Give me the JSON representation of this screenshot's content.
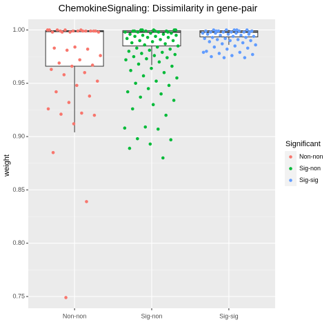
{
  "chart_data": {
    "type": "boxplot",
    "title": "ChemokineSignaling: Dissimilarity in gene-pair",
    "ylabel": "weight",
    "legend_title": "Significant",
    "legend_position": "right",
    "grid": true,
    "categories": [
      "Non-non",
      "Sig-non",
      "Sig-sig"
    ],
    "ylim": [
      0.739,
      1.01
    ],
    "yticks": [
      0.75,
      {
        "value": 0.8,
        "label": "0.80"
      },
      0.85,
      {
        "value": 0.9,
        "label": "0.90"
      },
      0.95,
      {
        "value": 1.0,
        "label": "1.00"
      }
    ],
    "series": [
      {
        "name": "Non-non",
        "color": "#F8766D",
        "box": {
          "min": 0.904,
          "q1": 0.966,
          "median": 0.9987,
          "q3": 0.9994,
          "max": 1.0
        },
        "values": [
          1,
          1,
          0.999,
          0.999,
          0.999,
          0.998,
          0.999,
          1,
          0.998,
          0.999,
          1,
          0.999,
          0.998,
          1,
          0.999,
          0.998,
          0.999,
          0.984,
          0.983,
          0.982,
          0.981,
          0.976,
          0.972,
          0.969,
          0.967,
          0.966,
          0.963,
          0.96,
          0.958,
          0.952,
          0.948,
          0.942,
          0.938,
          0.932,
          0.926,
          0.922,
          0.921,
          0.92,
          0.912,
          0.885,
          0.839,
          0.749
        ]
      },
      {
        "name": "Sig-non",
        "color": "#00BA38",
        "box": {
          "min": 0.967,
          "q1": 0.985,
          "median": 0.998,
          "q3": 0.9994,
          "max": 1.0
        },
        "values": [
          1,
          1,
          1,
          0.999,
          0.999,
          0.999,
          0.998,
          0.998,
          0.998,
          0.997,
          0.997,
          0.996,
          0.996,
          0.995,
          0.995,
          0.994,
          0.994,
          0.993,
          0.993,
          0.992,
          0.991,
          0.99,
          0.99,
          0.989,
          0.988,
          0.987,
          0.986,
          0.985,
          0.984,
          0.983,
          0.982,
          0.981,
          0.98,
          0.979,
          0.978,
          0.977,
          0.976,
          0.975,
          0.974,
          0.973,
          0.972,
          0.97,
          0.968,
          0.966,
          0.964,
          0.962,
          0.96,
          0.957,
          0.955,
          0.952,
          0.95,
          0.948,
          0.945,
          0.942,
          0.94,
          0.937,
          0.934,
          0.93,
          0.926,
          0.92,
          0.909,
          0.908,
          0.907,
          0.898,
          0.897,
          0.893,
          0.889,
          0.88,
          1,
          1,
          0.999,
          0.999,
          0.998
        ]
      },
      {
        "name": "Sig-sig",
        "color": "#619CFF",
        "box": {
          "min": 0.986,
          "q1": 0.9935,
          "median": 0.998,
          "q3": 0.9993,
          "max": 1.0
        },
        "values": [
          1,
          1,
          1,
          1,
          0.999,
          0.999,
          0.999,
          0.999,
          0.998,
          0.998,
          0.998,
          0.998,
          0.997,
          0.997,
          0.997,
          0.996,
          0.996,
          0.996,
          0.995,
          0.995,
          0.994,
          0.994,
          0.993,
          0.993,
          0.992,
          0.992,
          0.991,
          0.991,
          0.99,
          0.99,
          0.989,
          0.988,
          0.987,
          0.986,
          0.985,
          0.984,
          0.983,
          0.982,
          0.98,
          0.979,
          0.978,
          0.977,
          0.976,
          0.975,
          0.974,
          0.974,
          0.979,
          1,
          0.999,
          0.998
        ]
      }
    ]
  }
}
